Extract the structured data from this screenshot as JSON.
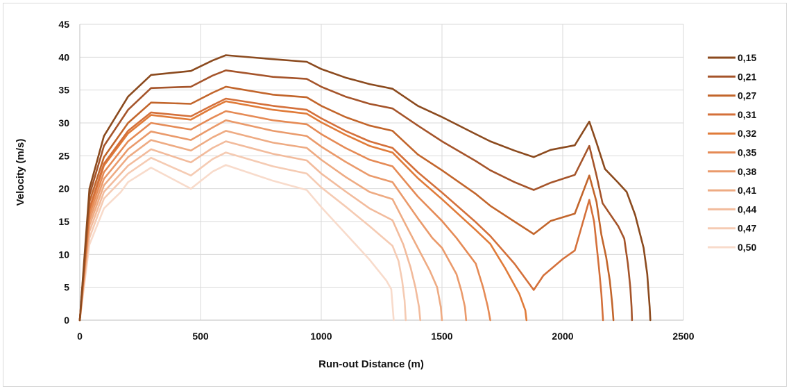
{
  "chart_data": {
    "type": "line",
    "title": "",
    "xlabel": "Run-out Distance (m)",
    "ylabel": "Velocity (m/s)",
    "xlim": [
      0,
      2500
    ],
    "ylim": [
      0,
      45
    ],
    "x_ticks": [
      "0",
      "500",
      "1000",
      "1500",
      "2000",
      "2500"
    ],
    "y_ticks": [
      "0",
      "5",
      "10",
      "15",
      "20",
      "25",
      "30",
      "35",
      "40",
      "45"
    ],
    "grid": "vertical",
    "legend_position": "right",
    "series": [
      {
        "name": "0,15",
        "color": "#8B4A1E",
        "points": [
          [
            0,
            0
          ],
          [
            40,
            20
          ],
          [
            100,
            28
          ],
          [
            200,
            34
          ],
          [
            295,
            37.3
          ],
          [
            460,
            37.9
          ],
          [
            550,
            39.5
          ],
          [
            605,
            40.3
          ],
          [
            800,
            39.7
          ],
          [
            940,
            39.3
          ],
          [
            1000,
            38.2
          ],
          [
            1100,
            36.9
          ],
          [
            1200,
            35.9
          ],
          [
            1295,
            35.2
          ],
          [
            1400,
            32.6
          ],
          [
            1500,
            30.9
          ],
          [
            1640,
            28.3
          ],
          [
            1700,
            27.2
          ],
          [
            1800,
            25.8
          ],
          [
            1880,
            24.8
          ],
          [
            1950,
            25.9
          ],
          [
            2050,
            26.6
          ],
          [
            2110,
            30.2
          ],
          [
            2140,
            27
          ],
          [
            2175,
            23
          ],
          [
            2230,
            20.9
          ],
          [
            2265,
            19.5
          ],
          [
            2300,
            16
          ],
          [
            2335,
            11
          ],
          [
            2350,
            7
          ],
          [
            2360,
            2
          ],
          [
            2363,
            0
          ]
        ]
      },
      {
        "name": "0,21",
        "color": "#A5542A",
        "points": [
          [
            0,
            0
          ],
          [
            40,
            19
          ],
          [
            100,
            26.5
          ],
          [
            200,
            32
          ],
          [
            295,
            35.3
          ],
          [
            460,
            35.5
          ],
          [
            550,
            37.2
          ],
          [
            605,
            38
          ],
          [
            800,
            37
          ],
          [
            940,
            36.7
          ],
          [
            1000,
            35.5
          ],
          [
            1100,
            34
          ],
          [
            1200,
            32.9
          ],
          [
            1295,
            32.2
          ],
          [
            1400,
            29.6
          ],
          [
            1500,
            27.2
          ],
          [
            1640,
            24.2
          ],
          [
            1700,
            22.8
          ],
          [
            1800,
            21
          ],
          [
            1880,
            19.8
          ],
          [
            1950,
            20.9
          ],
          [
            2050,
            22.1
          ],
          [
            2110,
            26.5
          ],
          [
            2140,
            22
          ],
          [
            2165,
            17.8
          ],
          [
            2230,
            14.3
          ],
          [
            2255,
            12.4
          ],
          [
            2270,
            8.5
          ],
          [
            2280,
            5
          ],
          [
            2285,
            2
          ],
          [
            2287,
            0
          ]
        ]
      },
      {
        "name": "0,27",
        "color": "#C2652B",
        "points": [
          [
            0,
            0
          ],
          [
            40,
            18
          ],
          [
            100,
            24.8
          ],
          [
            200,
            30
          ],
          [
            295,
            33.1
          ],
          [
            460,
            32.9
          ],
          [
            550,
            34.6
          ],
          [
            605,
            35.5
          ],
          [
            800,
            34.3
          ],
          [
            940,
            33.9
          ],
          [
            1000,
            32.6
          ],
          [
            1100,
            30.9
          ],
          [
            1200,
            29.6
          ],
          [
            1295,
            28.8
          ],
          [
            1400,
            25.2
          ],
          [
            1500,
            22.8
          ],
          [
            1640,
            19.2
          ],
          [
            1700,
            17.4
          ],
          [
            1800,
            15
          ],
          [
            1880,
            13.1
          ],
          [
            1950,
            15.1
          ],
          [
            2050,
            16.2
          ],
          [
            2110,
            22
          ],
          [
            2140,
            18
          ],
          [
            2160,
            13
          ],
          [
            2180,
            9.6
          ],
          [
            2195,
            6
          ],
          [
            2205,
            2.5
          ],
          [
            2210,
            0
          ]
        ]
      },
      {
        "name": "0,31",
        "color": "#D4703A",
        "points": [
          [
            0,
            0
          ],
          [
            40,
            17
          ],
          [
            100,
            23.8
          ],
          [
            200,
            28.8
          ],
          [
            295,
            31.6
          ],
          [
            460,
            31
          ],
          [
            550,
            32.7
          ],
          [
            605,
            33.7
          ],
          [
            800,
            32.6
          ],
          [
            940,
            32
          ],
          [
            1000,
            30.7
          ],
          [
            1100,
            28.8
          ],
          [
            1200,
            27.2
          ],
          [
            1295,
            26.2
          ],
          [
            1400,
            22.5
          ],
          [
            1500,
            19.4
          ],
          [
            1640,
            14.9
          ],
          [
            1700,
            12.8
          ],
          [
            1800,
            8.6
          ],
          [
            1880,
            4.6
          ],
          [
            1920,
            6.8
          ],
          [
            2000,
            9.3
          ],
          [
            2050,
            10.6
          ],
          [
            2110,
            18.3
          ],
          [
            2130,
            15
          ],
          [
            2150,
            8
          ],
          [
            2160,
            4
          ],
          [
            2167,
            0
          ]
        ]
      },
      {
        "name": "0,32",
        "color": "#E07B39",
        "points": [
          [
            0,
            0
          ],
          [
            40,
            16.8
          ],
          [
            100,
            23.5
          ],
          [
            200,
            28.4
          ],
          [
            295,
            31.2
          ],
          [
            460,
            30.5
          ],
          [
            550,
            32.3
          ],
          [
            605,
            33.3
          ],
          [
            800,
            32
          ],
          [
            940,
            31.4
          ],
          [
            1000,
            30.1
          ],
          [
            1100,
            28.2
          ],
          [
            1200,
            26.5
          ],
          [
            1295,
            25.5
          ],
          [
            1400,
            21.6
          ],
          [
            1500,
            18.4
          ],
          [
            1640,
            13.7
          ],
          [
            1700,
            11.6
          ],
          [
            1760,
            8
          ],
          [
            1820,
            4
          ],
          [
            1845,
            1.5
          ],
          [
            1850,
            0
          ]
        ]
      },
      {
        "name": "0,35",
        "color": "#E58A55",
        "points": [
          [
            0,
            0
          ],
          [
            40,
            16
          ],
          [
            100,
            22.5
          ],
          [
            200,
            27.2
          ],
          [
            295,
            30
          ],
          [
            460,
            29
          ],
          [
            550,
            30.8
          ],
          [
            605,
            31.8
          ],
          [
            800,
            30.4
          ],
          [
            940,
            29.8
          ],
          [
            1000,
            28.3
          ],
          [
            1100,
            26.2
          ],
          [
            1200,
            24.4
          ],
          [
            1295,
            23.4
          ],
          [
            1400,
            18.8
          ],
          [
            1500,
            15.1
          ],
          [
            1560,
            12.5
          ],
          [
            1640,
            8.6
          ],
          [
            1670,
            5
          ],
          [
            1690,
            2
          ],
          [
            1700,
            0
          ]
        ]
      },
      {
        "name": "0,38",
        "color": "#EA9A6B",
        "points": [
          [
            0,
            0
          ],
          [
            40,
            15.2
          ],
          [
            100,
            21.5
          ],
          [
            200,
            26
          ],
          [
            295,
            28.7
          ],
          [
            460,
            27.4
          ],
          [
            550,
            29.3
          ],
          [
            605,
            30.4
          ],
          [
            800,
            28.8
          ],
          [
            940,
            28
          ],
          [
            1000,
            26.4
          ],
          [
            1100,
            24.1
          ],
          [
            1200,
            22
          ],
          [
            1295,
            21
          ],
          [
            1400,
            15.5
          ],
          [
            1460,
            12.5
          ],
          [
            1500,
            11
          ],
          [
            1560,
            7
          ],
          [
            1580,
            4.5
          ],
          [
            1595,
            2
          ],
          [
            1600,
            0
          ]
        ]
      },
      {
        "name": "0,41",
        "color": "#EEAB83",
        "points": [
          [
            0,
            0
          ],
          [
            40,
            14.4
          ],
          [
            100,
            20.5
          ],
          [
            200,
            24.8
          ],
          [
            295,
            27.4
          ],
          [
            460,
            25.8
          ],
          [
            550,
            27.8
          ],
          [
            605,
            28.8
          ],
          [
            800,
            27
          ],
          [
            940,
            26.2
          ],
          [
            1000,
            24.4
          ],
          [
            1100,
            21.8
          ],
          [
            1200,
            19.5
          ],
          [
            1295,
            18.4
          ],
          [
            1350,
            14.5
          ],
          [
            1400,
            11
          ],
          [
            1450,
            7.5
          ],
          [
            1480,
            5
          ],
          [
            1495,
            2
          ],
          [
            1500,
            0
          ]
        ]
      },
      {
        "name": "0,44",
        "color": "#F2BB9C",
        "points": [
          [
            0,
            0
          ],
          [
            40,
            13.5
          ],
          [
            100,
            19.5
          ],
          [
            200,
            23.5
          ],
          [
            295,
            26
          ],
          [
            460,
            24
          ],
          [
            550,
            26.2
          ],
          [
            605,
            27.2
          ],
          [
            800,
            25.3
          ],
          [
            940,
            24.3
          ],
          [
            1000,
            22.3
          ],
          [
            1100,
            19.6
          ],
          [
            1200,
            17
          ],
          [
            1295,
            15.2
          ],
          [
            1340,
            11.5
          ],
          [
            1370,
            8
          ],
          [
            1390,
            5
          ],
          [
            1405,
            2
          ],
          [
            1410,
            0
          ]
        ]
      },
      {
        "name": "0,47",
        "color": "#F5CBB3",
        "points": [
          [
            0,
            0
          ],
          [
            40,
            12.5
          ],
          [
            100,
            18.5
          ],
          [
            200,
            22.3
          ],
          [
            295,
            24.7
          ],
          [
            460,
            22
          ],
          [
            550,
            24.5
          ],
          [
            605,
            25.5
          ],
          [
            800,
            23.4
          ],
          [
            940,
            22.3
          ],
          [
            1000,
            20.2
          ],
          [
            1100,
            17.3
          ],
          [
            1200,
            14.3
          ],
          [
            1295,
            11.3
          ],
          [
            1320,
            9
          ],
          [
            1335,
            6
          ],
          [
            1345,
            3
          ],
          [
            1350,
            0
          ]
        ]
      },
      {
        "name": "0,50",
        "color": "#F8DBCB",
        "points": [
          [
            0,
            0
          ],
          [
            40,
            11.5
          ],
          [
            100,
            17
          ],
          [
            170,
            19.5
          ],
          [
            200,
            21
          ],
          [
            295,
            23.2
          ],
          [
            460,
            20
          ],
          [
            550,
            22.6
          ],
          [
            605,
            23.6
          ],
          [
            800,
            21.2
          ],
          [
            940,
            19.8
          ],
          [
            1000,
            17.2
          ],
          [
            1100,
            13.2
          ],
          [
            1200,
            9.2
          ],
          [
            1270,
            6
          ],
          [
            1290,
            4.7
          ],
          [
            1300,
            0
          ]
        ]
      }
    ]
  }
}
